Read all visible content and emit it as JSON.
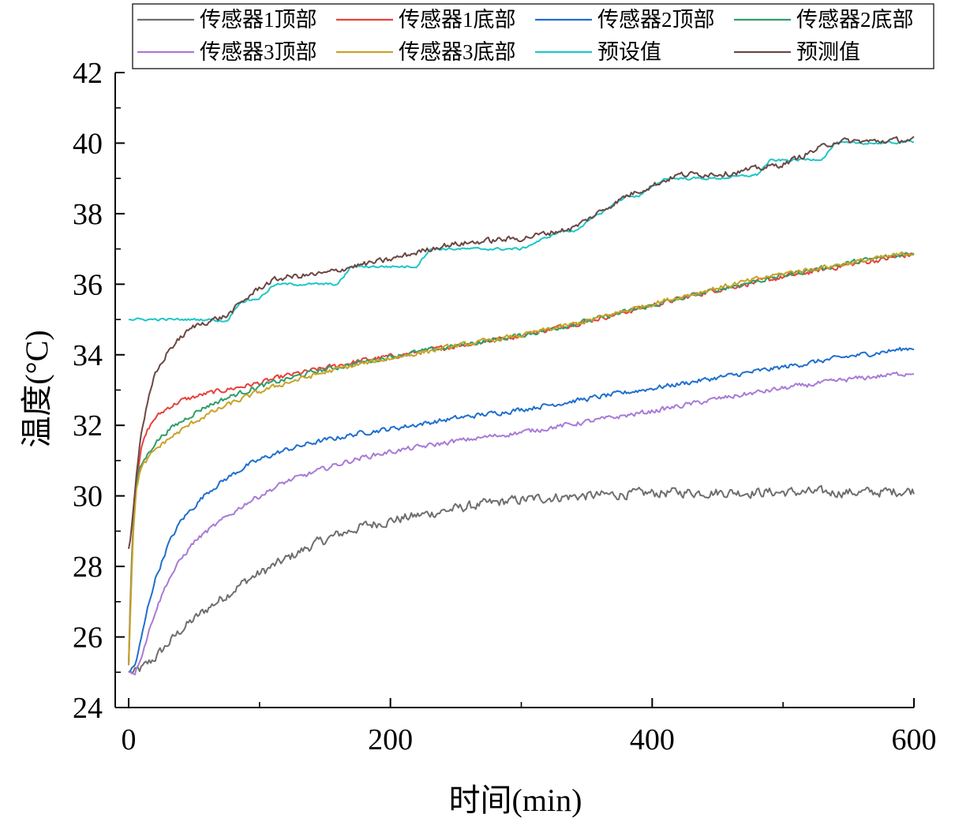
{
  "chart_data": {
    "type": "line",
    "title": "",
    "xlabel": "时间(min)",
    "ylabel": "温度(°C)",
    "xlim": [
      0,
      600
    ],
    "ylim": [
      24,
      42
    ],
    "x_ticks": [
      0,
      200,
      400,
      600
    ],
    "x_tick_labels": [
      "0",
      "200",
      "400",
      "600"
    ],
    "y_ticks": [
      24,
      26,
      28,
      30,
      32,
      34,
      36,
      38,
      40,
      42
    ],
    "y_tick_labels": [
      "24",
      "26",
      "28",
      "30",
      "32",
      "34",
      "36",
      "38",
      "40",
      "42"
    ],
    "grid": false,
    "legend_position": "top",
    "series": [
      {
        "name": "传感器1顶部",
        "color": "#6e6e6e",
        "noise": 0.12,
        "x": [
          0,
          5,
          10,
          20,
          30,
          40,
          50,
          60,
          75,
          90,
          105,
          120,
          140,
          160,
          180,
          200,
          230,
          260,
          290,
          320,
          350,
          380,
          420,
          460,
          500,
          540,
          570,
          600
        ],
        "y": [
          25.0,
          25.0,
          25.1,
          25.4,
          25.8,
          26.2,
          26.5,
          26.8,
          27.2,
          27.6,
          27.9,
          28.2,
          28.6,
          28.9,
          29.15,
          29.3,
          29.5,
          29.7,
          29.85,
          29.95,
          30.0,
          30.05,
          30.1,
          30.1,
          30.1,
          30.1,
          30.1,
          30.15
        ]
      },
      {
        "name": "传感器1底部",
        "color": "#e8413c",
        "noise": 0.06,
        "x": [
          0,
          2,
          4,
          6,
          8,
          10,
          15,
          20,
          30,
          40,
          50,
          60,
          80,
          100,
          120,
          140,
          160,
          180,
          200,
          250,
          300,
          350,
          400,
          450,
          500,
          550,
          600
        ],
        "y": [
          25.2,
          28.0,
          29.6,
          30.5,
          31.0,
          31.4,
          31.9,
          32.2,
          32.5,
          32.7,
          32.8,
          32.9,
          33.05,
          33.2,
          33.4,
          33.55,
          33.7,
          33.85,
          33.95,
          34.25,
          34.55,
          34.95,
          35.4,
          35.85,
          36.2,
          36.55,
          36.85
        ]
      },
      {
        "name": "传感器2顶部",
        "color": "#1f6fcf",
        "noise": 0.06,
        "x": [
          0,
          5,
          10,
          15,
          20,
          30,
          40,
          50,
          60,
          75,
          90,
          105,
          120,
          140,
          160,
          180,
          200,
          250,
          300,
          350,
          400,
          450,
          500,
          550,
          600
        ],
        "y": [
          25.0,
          25.2,
          26.0,
          26.9,
          27.6,
          28.6,
          29.3,
          29.7,
          30.1,
          30.5,
          30.85,
          31.1,
          31.3,
          31.5,
          31.65,
          31.8,
          31.9,
          32.2,
          32.45,
          32.75,
          33.05,
          33.35,
          33.65,
          33.95,
          34.2
        ]
      },
      {
        "name": "传感器2底部",
        "color": "#2e9e6b",
        "noise": 0.06,
        "x": [
          0,
          2,
          4,
          6,
          8,
          10,
          15,
          20,
          30,
          40,
          50,
          60,
          80,
          100,
          120,
          140,
          160,
          180,
          200,
          250,
          300,
          350,
          400,
          450,
          500,
          550,
          600
        ],
        "y": [
          25.2,
          27.8,
          29.5,
          30.3,
          30.7,
          30.9,
          31.2,
          31.5,
          31.85,
          32.1,
          32.35,
          32.55,
          32.85,
          33.1,
          33.3,
          33.5,
          33.65,
          33.8,
          33.95,
          34.25,
          34.55,
          34.95,
          35.4,
          35.85,
          36.25,
          36.6,
          36.9
        ]
      },
      {
        "name": "传感器3顶部",
        "color": "#a87bd6",
        "noise": 0.06,
        "x": [
          0,
          5,
          10,
          15,
          20,
          30,
          40,
          50,
          60,
          75,
          90,
          105,
          120,
          140,
          160,
          180,
          200,
          250,
          300,
          350,
          400,
          450,
          500,
          550,
          600
        ],
        "y": [
          25.0,
          25.0,
          25.5,
          26.1,
          26.7,
          27.6,
          28.2,
          28.7,
          29.0,
          29.4,
          29.8,
          30.1,
          30.4,
          30.65,
          30.9,
          31.1,
          31.25,
          31.55,
          31.8,
          32.1,
          32.4,
          32.75,
          33.05,
          33.3,
          33.5
        ]
      },
      {
        "name": "传感器3底部",
        "color": "#c9a227",
        "noise": 0.06,
        "x": [
          0,
          2,
          4,
          6,
          8,
          10,
          15,
          20,
          30,
          40,
          50,
          60,
          80,
          100,
          120,
          140,
          160,
          180,
          200,
          250,
          300,
          350,
          400,
          450,
          500,
          550,
          600
        ],
        "y": [
          25.2,
          27.5,
          29.3,
          30.2,
          30.6,
          30.8,
          31.05,
          31.3,
          31.6,
          31.85,
          32.1,
          32.3,
          32.65,
          32.95,
          33.2,
          33.4,
          33.6,
          33.75,
          33.9,
          34.25,
          34.55,
          34.95,
          35.45,
          35.9,
          36.3,
          36.6,
          36.9
        ]
      },
      {
        "name": "预设值",
        "color": "#1fc6c6",
        "noise": 0.03,
        "x": [
          0,
          10,
          20,
          60,
          75,
          85,
          100,
          110,
          115,
          150,
          160,
          170,
          220,
          230,
          280,
          300,
          330,
          340,
          380,
          390,
          410,
          420,
          440,
          450,
          480,
          490,
          530,
          540,
          580,
          600
        ],
        "y": [
          35.0,
          35.0,
          35.0,
          35.0,
          34.95,
          35.5,
          35.6,
          35.95,
          36.0,
          36.0,
          36.0,
          36.5,
          36.5,
          37.0,
          37.0,
          37.0,
          37.5,
          37.5,
          38.5,
          38.5,
          39.0,
          39.0,
          39.0,
          39.0,
          39.1,
          39.5,
          39.55,
          40.0,
          40.0,
          40.05
        ]
      },
      {
        "name": "预测值",
        "color": "#6b4743",
        "noise": 0.07,
        "x": [
          0,
          2,
          5,
          8,
          10,
          15,
          20,
          30,
          40,
          50,
          60,
          75,
          90,
          100,
          110,
          120,
          150,
          170,
          200,
          240,
          280,
          300,
          340,
          380,
          420,
          460,
          500,
          540,
          570,
          600
        ],
        "y": [
          28.5,
          29.0,
          30.3,
          31.3,
          31.9,
          32.7,
          33.4,
          34.1,
          34.5,
          34.8,
          34.95,
          35.1,
          35.6,
          35.9,
          36.1,
          36.2,
          36.3,
          36.5,
          36.7,
          37.1,
          37.25,
          37.3,
          37.6,
          38.5,
          39.1,
          39.15,
          39.4,
          40.05,
          40.05,
          40.1
        ]
      }
    ]
  }
}
